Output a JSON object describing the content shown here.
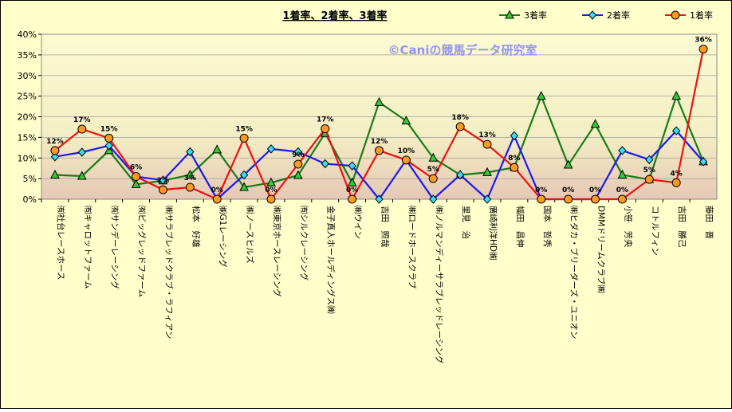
{
  "chart_data": {
    "type": "line",
    "title": "1着率、2着率、3着率",
    "watermark": "©Caniの競馬データ研究室",
    "xlabel": "",
    "ylabel": "",
    "ylim": [
      0,
      40
    ],
    "yticks": [
      0,
      5,
      10,
      15,
      20,
      25,
      30,
      35,
      40
    ],
    "ytick_suffix": "%",
    "grid": true,
    "legend_position": "top-right",
    "categories": [
      "㈲社台レースホース",
      "㈲キャロットファーム",
      "㈲サンデーレーシング",
      "㈲ビッグレッドファーム",
      "㈱サラブレッドクラブ・ラフィアン",
      "松本　好雄",
      "㈱G1レーシング",
      "㈱ノースヒルズ",
      "㈱東京ホースレーシング",
      "㈲シルクレーシング",
      "金子真人ホールディングス㈱",
      "㈱ウイン",
      "吉田　照哉",
      "㈱ロードホースクラブ",
      "㈱ノルマンディーサラブレッドレーシング",
      "里見　治",
      "廣崎利洋HD㈱",
      "幅田　昌伸",
      "国本　哲秀",
      "㈱ヒダカ・ブリーダーズ・ユニオン",
      "DMMドリームクラブ㈱",
      "小笹　芳央",
      "コトルフィン",
      "吉田　勝己",
      "藤田　晋"
    ],
    "series": [
      {
        "name": "3着率",
        "color": "#1a7a1a",
        "marker": "triangle",
        "marker_fill": "#33cc33",
        "values": [
          5.9,
          5.6,
          11.8,
          3.6,
          4.5,
          5.9,
          12.0,
          2.9,
          4.0,
          5.8,
          16.0,
          4.0,
          23.5,
          19.0,
          10.0,
          5.9,
          6.5,
          7.7,
          25.0,
          8.3,
          18.2,
          5.9,
          4.8,
          25.0,
          9.1
        ]
      },
      {
        "name": "2着率",
        "color": "#1a1aee",
        "marker": "diamond",
        "marker_fill": "#33e0ff",
        "values": [
          10.3,
          11.4,
          13.0,
          5.5,
          4.6,
          11.5,
          0,
          5.9,
          12.2,
          11.5,
          8.6,
          8.1,
          0,
          9.5,
          0,
          5.9,
          0,
          15.4,
          0,
          0,
          0,
          11.8,
          9.6,
          16.6,
          9.1
        ]
      },
      {
        "name": "1着率",
        "color": "#ee1111",
        "marker": "circle",
        "marker_fill": "#ff9922",
        "values": [
          11.8,
          17.0,
          14.8,
          5.5,
          2.3,
          2.9,
          0,
          14.8,
          0,
          8.5,
          17.1,
          0,
          11.8,
          9.5,
          5.0,
          17.6,
          13.3,
          7.7,
          0,
          0,
          0,
          0,
          4.8,
          4.0,
          36.4
        ]
      }
    ],
    "data_labels": {
      "series": "1着率",
      "values": [
        "12%",
        "17%",
        "15%",
        "6%",
        "2%",
        "3%",
        "0%",
        "15%",
        "0%",
        "9%",
        "17%",
        "0%",
        "12%",
        "10%",
        "5%",
        "18%",
        "13%",
        "8%",
        "0%",
        "0%",
        "0%",
        "0%",
        "5%",
        "4%",
        "36%"
      ]
    }
  }
}
